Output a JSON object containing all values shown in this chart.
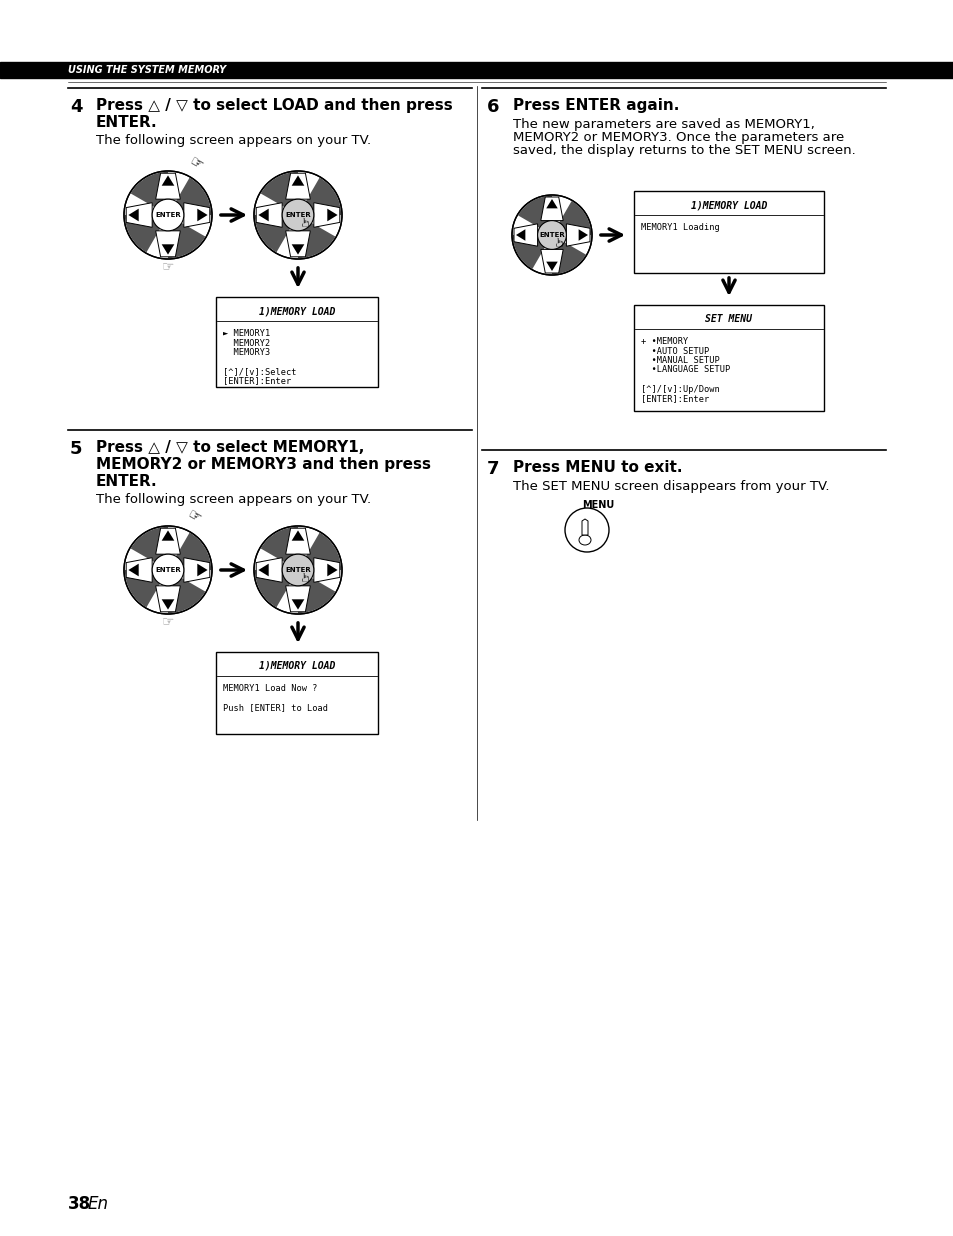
{
  "bg_color": "#ffffff",
  "header_bg": "#000000",
  "header_text": "USING THE SYSTEM MEMORY",
  "header_text_color": "#ffffff",
  "page_number": "38",
  "page_en": "En",
  "section4_num": "4",
  "section4_head1": "Press △ / ▽ to select LOAD and then press",
  "section4_head2": "ENTER.",
  "section4_sub": "The following screen appears on your TV.",
  "section5_num": "5",
  "section5_head1": "Press △ / ▽ to select MEMORY1,",
  "section5_head2": "MEMORY2 or MEMORY3 and then press",
  "section5_head3": "ENTER.",
  "section5_sub": "The following screen appears on your TV.",
  "section6_num": "6",
  "section6_head": "Press ENTER again.",
  "section6_sub1": "The new parameters are saved as MEMORY1,",
  "section6_sub2": "MEMORY2 or MEMORY3. Once the parameters are",
  "section6_sub3": "saved, the display returns to the SET MENU screen.",
  "section7_num": "7",
  "section7_head": "Press MENU to exit.",
  "section7_sub": "The SET MENU screen disappears from your TV.",
  "screen1_title": "1)MEMORY LOAD",
  "screen1_lines": [
    "► MEMORY1",
    "  MEMORY2",
    "  MEMORY3",
    "",
    "[^]/[v]:Select",
    "[ENTER]:Enter"
  ],
  "screen2_title": "1)MEMORY LOAD",
  "screen2_lines": [
    "MEMORY1 Loading"
  ],
  "screen3_title": "SET MENU",
  "screen3_lines": [
    "+ •MEMORY",
    "  •AUTO SETUP",
    "  •MANUAL SETUP",
    "  •LANGUAGE SETUP",
    "",
    "[^]/[v]:Up/Down",
    "[ENTER]:Enter"
  ],
  "screen4_title": "1)MEMORY LOAD",
  "screen4_lines": [
    "MEMORY1 Load Now ?",
    "",
    "Push [ENTER] to Load"
  ]
}
